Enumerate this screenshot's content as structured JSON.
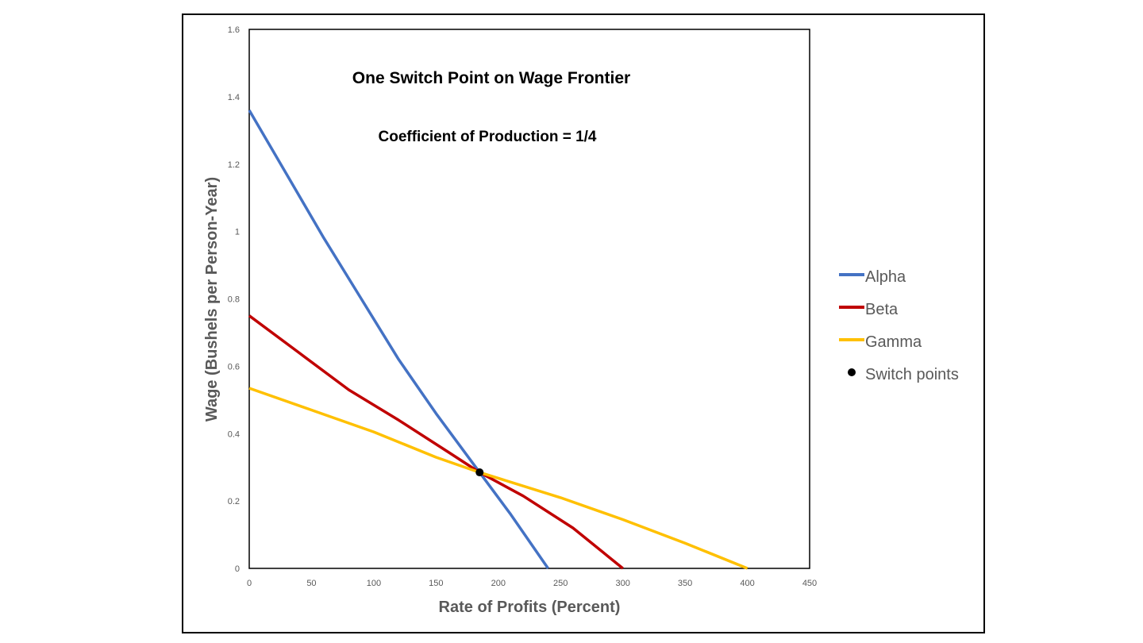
{
  "chart_data": {
    "type": "line",
    "title": "One Switch Point on Wage Frontier",
    "subtitle": "Coefficient of Production = 1/4",
    "xlabel": "Rate of Profits (Percent)",
    "ylabel": "Wage (Bushels per Person-Year)",
    "xlim": [
      0,
      450
    ],
    "ylim": [
      0,
      1.6
    ],
    "x_ticks": [
      "0",
      "50",
      "100",
      "150",
      "200",
      "250",
      "300",
      "350",
      "400",
      "450"
    ],
    "y_ticks": [
      "0",
      "0.2",
      "0.4",
      "0.6",
      "0.8",
      "1",
      "1.2",
      "1.4",
      "1.6"
    ],
    "grid": false,
    "legend_position": "right",
    "series": [
      {
        "name": "Alpha",
        "color": "#4472C4",
        "points": [
          [
            0,
            1.36
          ],
          [
            30,
            1.17
          ],
          [
            60,
            0.98
          ],
          [
            90,
            0.8
          ],
          [
            120,
            0.62
          ],
          [
            150,
            0.46
          ],
          [
            185,
            0.285
          ],
          [
            210,
            0.16
          ],
          [
            240,
            0
          ]
        ]
      },
      {
        "name": "Beta",
        "color": "#C00000",
        "points": [
          [
            0,
            0.75
          ],
          [
            40,
            0.64
          ],
          [
            80,
            0.53
          ],
          [
            120,
            0.44
          ],
          [
            160,
            0.345
          ],
          [
            185,
            0.285
          ],
          [
            220,
            0.215
          ],
          [
            260,
            0.12
          ],
          [
            300,
            0
          ]
        ]
      },
      {
        "name": "Gamma",
        "color": "#FFC000",
        "points": [
          [
            0,
            0.535
          ],
          [
            50,
            0.47
          ],
          [
            100,
            0.405
          ],
          [
            150,
            0.33
          ],
          [
            185,
            0.285
          ],
          [
            250,
            0.21
          ],
          [
            300,
            0.145
          ],
          [
            350,
            0.075
          ],
          [
            400,
            0
          ]
        ]
      }
    ],
    "switch_points": {
      "name": "Switch points",
      "color": "#000000",
      "points": [
        [
          185,
          0.285
        ]
      ]
    }
  }
}
